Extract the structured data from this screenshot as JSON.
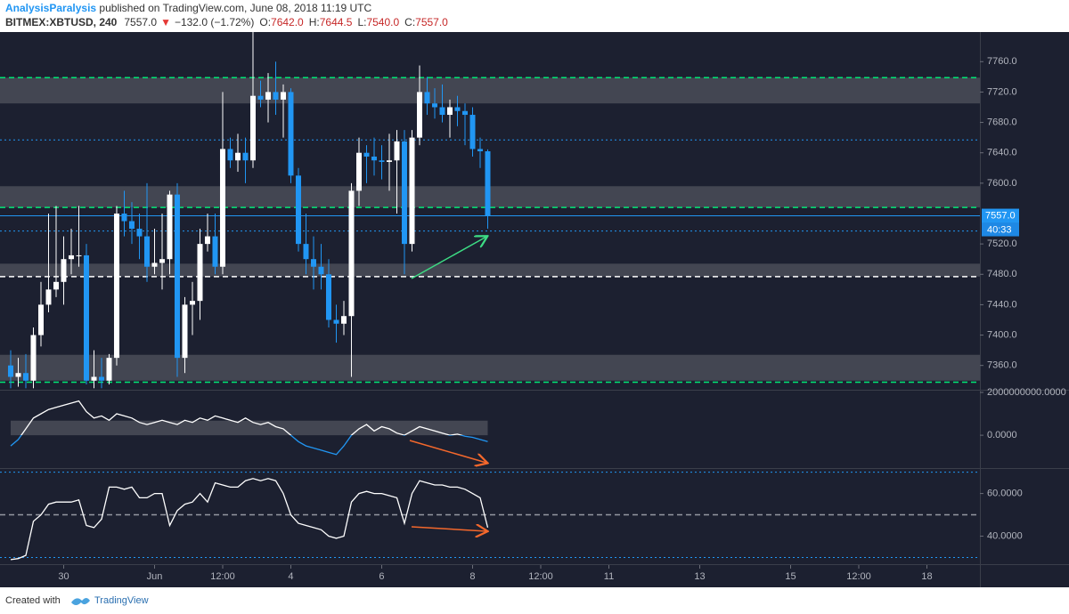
{
  "header": {
    "author": "AnalysisParalysis",
    "published": "published on TradingView.com, June 08, 2018 11:19 UTC",
    "symbol": "BITMEX:XBTUSD, 240",
    "price": "7557.0",
    "arrow": "▼",
    "change": "−132.0 (−1.72%)",
    "ohlc": [
      {
        "label": "O:",
        "value": "7642.0"
      },
      {
        "label": "H:",
        "value": "7644.5"
      },
      {
        "label": "L:",
        "value": "7540.0"
      },
      {
        "label": "C:",
        "value": "7557.0"
      }
    ]
  },
  "footer": {
    "created": "Created with",
    "brand": "TradingView"
  },
  "chart_data": [
    {
      "type": "candlestick",
      "up_color": "#ffffff",
      "down_color": "#2196f3",
      "open": [
        7360,
        7345,
        7350,
        7340,
        7400,
        7440,
        7460,
        7470,
        7500,
        7505,
        7505,
        7340,
        7345,
        7340,
        7370,
        7560,
        7550,
        7540,
        7530,
        7490,
        7495,
        7500,
        7585,
        7370,
        7440,
        7445,
        7520,
        7530,
        7490,
        7645,
        7630,
        7640,
        7630,
        7715,
        7710,
        7720,
        7710,
        7720,
        7610,
        7520,
        7500,
        7490,
        7480,
        7420,
        7415,
        7425,
        7590,
        7640,
        7635,
        7630,
        7628,
        7630,
        7655,
        7520,
        7660,
        7720,
        7705,
        7700,
        7690,
        7700,
        7695,
        7690,
        7645,
        7642
      ],
      "high": [
        7380,
        7370,
        7375,
        7410,
        7470,
        7560,
        7570,
        7530,
        7540,
        7570,
        7520,
        7380,
        7370,
        7375,
        7570,
        7590,
        7575,
        7560,
        7600,
        7540,
        7560,
        7590,
        7600,
        7450,
        7470,
        7540,
        7560,
        7560,
        7720,
        7660,
        7665,
        7660,
        7800,
        7735,
        7745,
        7760,
        7730,
        7725,
        7620,
        7560,
        7530,
        7520,
        7500,
        7440,
        7445,
        7600,
        7660,
        7650,
        7660,
        7650,
        7665,
        7670,
        7670,
        7670,
        7755,
        7740,
        7725,
        7730,
        7710,
        7715,
        7705,
        7700,
        7660,
        7644.5
      ],
      "low": [
        7330,
        7332,
        7330,
        7330,
        7385,
        7430,
        7450,
        7440,
        7480,
        7490,
        7335,
        7330,
        7330,
        7335,
        7360,
        7530,
        7520,
        7500,
        7470,
        7480,
        7460,
        7480,
        7345,
        7350,
        7400,
        7420,
        7510,
        7480,
        7480,
        7620,
        7615,
        7600,
        7620,
        7700,
        7680,
        7690,
        7660,
        7600,
        7510,
        7480,
        7460,
        7460,
        7410,
        7390,
        7400,
        7345,
        7570,
        7600,
        7610,
        7605,
        7590,
        7560,
        7480,
        7510,
        7650,
        7690,
        7685,
        7680,
        7660,
        7675,
        7650,
        7635,
        7620,
        7540
      ],
      "close": [
        7345,
        7350,
        7340,
        7400,
        7440,
        7460,
        7470,
        7500,
        7505,
        7505,
        7340,
        7345,
        7340,
        7370,
        7560,
        7550,
        7540,
        7530,
        7490,
        7495,
        7500,
        7585,
        7370,
        7440,
        7445,
        7520,
        7530,
        7490,
        7645,
        7630,
        7640,
        7630,
        7715,
        7710,
        7720,
        7710,
        7720,
        7610,
        7520,
        7500,
        7490,
        7480,
        7420,
        7415,
        7425,
        7590,
        7640,
        7635,
        7630,
        7628,
        7630,
        7655,
        7520,
        7660,
        7720,
        7705,
        7700,
        7690,
        7700,
        7695,
        7690,
        7645,
        7642,
        7557
      ],
      "xlim": [
        -1.41,
        128
      ],
      "xticks": [
        {
          "value": 7,
          "label": "30"
        },
        {
          "value": 19,
          "label": "Jun"
        },
        {
          "value": 28,
          "label": "12:00"
        },
        {
          "value": 37,
          "label": "4"
        },
        {
          "value": 49,
          "label": "6"
        },
        {
          "value": 61,
          "label": "8"
        },
        {
          "value": 70,
          "label": "12:00"
        },
        {
          "value": 79,
          "label": "11"
        },
        {
          "value": 91,
          "label": "13"
        },
        {
          "value": 103,
          "label": "15"
        },
        {
          "value": 112,
          "label": "12:00"
        },
        {
          "value": 121,
          "label": "18"
        }
      ],
      "ylim": [
        7328,
        7799
      ],
      "yticks": [
        {
          "value": 7360,
          "label": "7360.0"
        },
        {
          "value": 7400,
          "label": "7400.0"
        },
        {
          "value": 7440,
          "label": "7440.0"
        },
        {
          "value": 7480,
          "label": "7480.0"
        },
        {
          "value": 7520,
          "label": "7520.0"
        },
        {
          "value": 7600,
          "label": "7600.0"
        },
        {
          "value": 7640,
          "label": "7640.0"
        },
        {
          "value": 7680,
          "label": "7680.0"
        },
        {
          "value": 7720,
          "label": "7720.0"
        },
        {
          "value": 7760,
          "label": "7760.0"
        }
      ],
      "zones": [
        {
          "from": 7705,
          "to": 7739
        },
        {
          "from": 7568,
          "to": 7596
        },
        {
          "from": 7477,
          "to": 7494
        },
        {
          "from": 7340,
          "to": 7374
        }
      ],
      "levels": [
        {
          "value": 7739,
          "style": "dashed",
          "color": "#00e676"
        },
        {
          "value": 7568,
          "style": "dashed",
          "color": "#00e676"
        },
        {
          "value": 7338,
          "style": "dashed",
          "color": "#00e676"
        },
        {
          "value": 7657,
          "style": "dotted",
          "color": "#2196f3"
        },
        {
          "value": 7537,
          "style": "dotted",
          "color": "#2196f3"
        },
        {
          "value": 7477,
          "style": "dashed",
          "color": "#ffffff"
        },
        {
          "value": 7557,
          "style": "solid",
          "color": "#2196f3"
        }
      ],
      "last_price_label": "7557.0",
      "countdown": "40:33"
    },
    {
      "type": "line",
      "color": "#ffffff",
      "color_below": "#2196f3",
      "values": [
        -500000000,
        -200000000,
        300000000,
        800000000,
        1000000000,
        1200000000,
        1300000000,
        1400000000,
        1500000000,
        1600000000,
        1100000000,
        800000000,
        900000000,
        700000000,
        1000000000,
        900000000,
        800000000,
        600000000,
        500000000,
        600000000,
        700000000,
        600000000,
        500000000,
        700000000,
        600000000,
        800000000,
        700000000,
        900000000,
        800000000,
        700000000,
        600000000,
        800000000,
        600000000,
        500000000,
        600000000,
        400000000,
        300000000,
        0,
        -300000000,
        -500000000,
        -600000000,
        -700000000,
        -800000000,
        -900000000,
        -500000000,
        0,
        300000000,
        500000000,
        200000000,
        400000000,
        300000000,
        100000000,
        0,
        200000000,
        400000000,
        300000000,
        200000000,
        100000000,
        0,
        50000000,
        -50000000,
        -100000000,
        -200000000,
        -300000000
      ],
      "ylim": [
        -1450000000,
        2040000000
      ],
      "yticks": [
        {
          "value": 2000000000,
          "label": "2000000000.0000"
        },
        {
          "value": 0,
          "label": "0.0000"
        }
      ],
      "zones": [
        {
          "from": 0,
          "to": 680000000
        }
      ]
    },
    {
      "type": "line",
      "color": "#ffffff",
      "values": [
        29,
        29.5,
        31,
        47,
        50,
        55,
        56,
        56,
        56,
        57,
        45,
        44,
        48,
        63,
        63,
        62,
        63,
        58,
        58,
        60,
        60,
        45,
        52,
        55,
        56,
        60,
        56,
        65,
        64,
        63,
        63,
        66,
        67,
        66,
        67,
        66,
        60,
        50,
        46,
        45,
        44,
        43,
        40,
        39,
        40,
        56,
        60,
        61,
        60,
        60,
        59,
        58,
        46,
        60,
        66,
        65,
        64,
        64,
        63,
        63,
        62,
        60,
        58,
        44
      ],
      "ylim": [
        27.7,
        71.1
      ],
      "yticks": [
        {
          "value": 60,
          "label": "60.0000"
        },
        {
          "value": 40,
          "label": "40.0000"
        }
      ],
      "levels": [
        {
          "value": 70,
          "style": "dotted",
          "color": "#2196f3"
        },
        {
          "value": 50,
          "style": "dashed",
          "color": "#9598a1"
        },
        {
          "value": 30,
          "style": "dotted",
          "color": "#2196f3"
        }
      ]
    }
  ]
}
